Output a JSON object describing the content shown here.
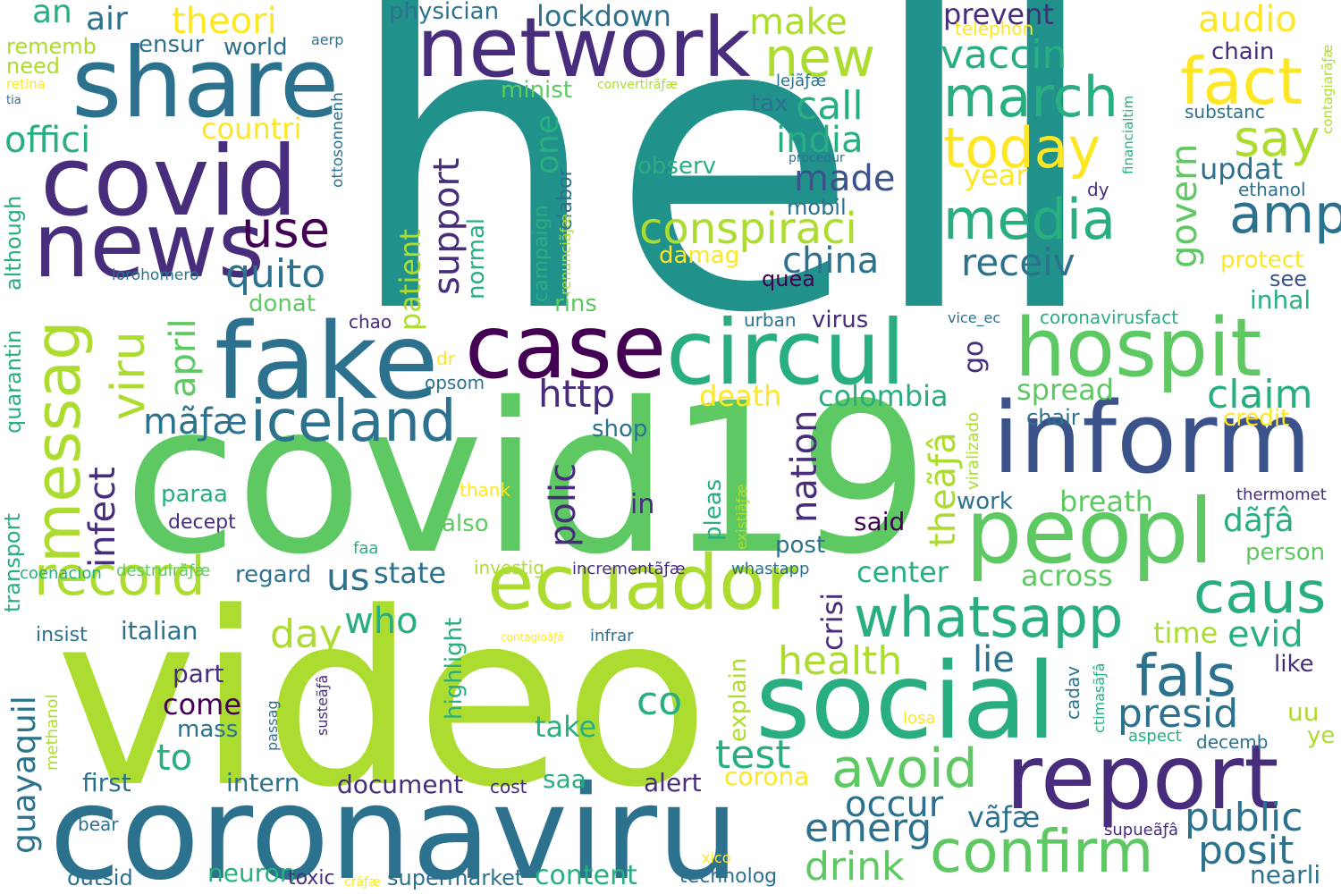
{
  "palette": {
    "d": "#440154",
    "p": "#472d7b",
    "i": "#3b528b",
    "b": "#2c728e",
    "t": "#21918c",
    "s": "#28ae80",
    "g": "#5ec962",
    "l": "#addc30",
    "y": "#fde725"
  },
  "words": [
    {
      "text": "hell",
      "c": "t"
    },
    {
      "text": "covid19",
      "c": "g"
    },
    {
      "text": "video",
      "c": "l"
    },
    {
      "text": "coronaviru",
      "c": "b"
    },
    {
      "text": "network",
      "c": "p"
    },
    {
      "text": "share",
      "c": "b"
    },
    {
      "text": "covid",
      "c": "p"
    },
    {
      "text": "news",
      "c": "p"
    },
    {
      "text": "fake",
      "c": "b"
    },
    {
      "text": "case",
      "c": "d"
    },
    {
      "text": "circul",
      "c": "s"
    },
    {
      "text": "hospit",
      "c": "g"
    },
    {
      "text": "inform",
      "c": "i"
    },
    {
      "text": "peopl",
      "c": "g"
    },
    {
      "text": "report",
      "c": "p"
    },
    {
      "text": "social",
      "c": "s"
    },
    {
      "text": "ecuador",
      "c": "l"
    },
    {
      "text": "whatsapp",
      "c": "s"
    },
    {
      "text": "iceland",
      "c": "b"
    },
    {
      "text": "messag",
      "c": "l"
    },
    {
      "text": "record",
      "c": "l"
    },
    {
      "text": "viru",
      "c": "l"
    },
    {
      "text": "march",
      "c": "s"
    },
    {
      "text": "fact",
      "c": "y"
    },
    {
      "text": "today",
      "c": "y"
    },
    {
      "text": "media",
      "c": "s"
    },
    {
      "text": "amp",
      "c": "b"
    },
    {
      "text": "say",
      "c": "l"
    },
    {
      "text": "new",
      "c": "l"
    },
    {
      "text": "conspiraci",
      "c": "l"
    },
    {
      "text": "confirm",
      "c": "g"
    },
    {
      "text": "avoid",
      "c": "g"
    },
    {
      "text": "fals",
      "c": "b"
    },
    {
      "text": "caus",
      "c": "s"
    },
    {
      "text": "claim",
      "c": "s"
    },
    {
      "text": "presid",
      "c": "b"
    },
    {
      "text": "public",
      "c": "b"
    },
    {
      "text": "posit",
      "c": "b"
    },
    {
      "text": "drink",
      "c": "g"
    },
    {
      "text": "emerg",
      "c": "b"
    },
    {
      "text": "test",
      "c": "s"
    },
    {
      "text": "health",
      "c": "l"
    },
    {
      "text": "use",
      "c": "d"
    },
    {
      "text": "quito",
      "c": "b"
    },
    {
      "text": "support",
      "c": "p"
    },
    {
      "text": "one",
      "c": "s"
    },
    {
      "text": "http",
      "c": "p"
    },
    {
      "text": "polic",
      "c": "p"
    },
    {
      "text": "nation",
      "c": "p"
    },
    {
      "text": "china",
      "c": "b"
    },
    {
      "text": "india",
      "c": "s"
    },
    {
      "text": "made",
      "c": "i"
    },
    {
      "text": "call",
      "c": "s"
    },
    {
      "text": "make",
      "c": "l"
    },
    {
      "text": "vaccin",
      "c": "s"
    },
    {
      "text": "receiv",
      "c": "b"
    },
    {
      "text": "govern",
      "c": "g"
    },
    {
      "text": "prevent",
      "c": "p"
    },
    {
      "text": "audio",
      "c": "y"
    },
    {
      "text": "updat",
      "c": "b"
    },
    {
      "text": "year",
      "c": "y"
    },
    {
      "text": "chain",
      "c": "p"
    },
    {
      "text": "substanc",
      "c": "b"
    },
    {
      "text": "ethanol",
      "c": "b"
    },
    {
      "text": "protect",
      "c": "y"
    },
    {
      "text": "see",
      "c": "i"
    },
    {
      "text": "inhal",
      "c": "s"
    },
    {
      "text": "tax",
      "c": "b"
    },
    {
      "text": "mobil",
      "c": "b"
    },
    {
      "text": "damag",
      "c": "y"
    },
    {
      "text": "observ",
      "c": "s"
    },
    {
      "text": "lockdown",
      "c": "b"
    },
    {
      "text": "physician",
      "c": "b"
    },
    {
      "text": "theori",
      "c": "y"
    },
    {
      "text": "air",
      "c": "b"
    },
    {
      "text": "an",
      "c": "s"
    },
    {
      "text": "world",
      "c": "b"
    },
    {
      "text": "ensur",
      "c": "b"
    },
    {
      "text": "rememb",
      "c": "l"
    },
    {
      "text": "need",
      "c": "l"
    },
    {
      "text": "retina",
      "c": "y"
    },
    {
      "text": "tia",
      "c": "b"
    },
    {
      "text": "offici",
      "c": "s"
    },
    {
      "text": "countri",
      "c": "y"
    },
    {
      "text": "minist",
      "c": "g"
    },
    {
      "text": "although",
      "c": "s"
    },
    {
      "text": "quarantin",
      "c": "s"
    },
    {
      "text": "transport",
      "c": "s"
    },
    {
      "text": "infect",
      "c": "p"
    },
    {
      "text": "april",
      "c": "g"
    },
    {
      "text": "mãƒæ",
      "c": "b"
    },
    {
      "text": "patient",
      "c": "l"
    },
    {
      "text": "normal",
      "c": "s"
    },
    {
      "text": "campaign",
      "c": "s"
    },
    {
      "text": "elabor",
      "c": "b"
    },
    {
      "text": "renunciãƒæ",
      "c": "l"
    },
    {
      "text": "ottosonnenh",
      "c": "b"
    },
    {
      "text": "lorohomero",
      "c": "b"
    },
    {
      "text": "donat",
      "c": "g"
    },
    {
      "text": "rins",
      "c": "g"
    },
    {
      "text": "chao",
      "c": "p"
    },
    {
      "text": "urban",
      "c": "b"
    },
    {
      "text": "virus",
      "c": "p"
    },
    {
      "text": "quea",
      "c": "d"
    },
    {
      "text": "vice_ec",
      "c": "b"
    },
    {
      "text": "coronavirusfact",
      "c": "s"
    },
    {
      "text": "dr",
      "c": "y"
    },
    {
      "text": "opsom",
      "c": "b"
    },
    {
      "text": "death",
      "c": "y"
    },
    {
      "text": "colombia",
      "c": "s"
    },
    {
      "text": "go",
      "c": "p"
    },
    {
      "text": "theãƒâ",
      "c": "l"
    },
    {
      "text": "viralizado",
      "c": "l"
    },
    {
      "text": "spread",
      "c": "g"
    },
    {
      "text": "chair",
      "c": "b"
    },
    {
      "text": "credit",
      "c": "y"
    },
    {
      "text": "dãƒâ",
      "c": "s"
    },
    {
      "text": "shop",
      "c": "b"
    },
    {
      "text": "paraa",
      "c": "s"
    },
    {
      "text": "decept",
      "c": "p"
    },
    {
      "text": "thank",
      "c": "y"
    },
    {
      "text": "also",
      "c": "g"
    },
    {
      "text": "in",
      "c": "p"
    },
    {
      "text": "pleas",
      "c": "s"
    },
    {
      "text": "existiãƒæ",
      "c": "l"
    },
    {
      "text": "said",
      "c": "d"
    },
    {
      "text": "post",
      "c": "b"
    },
    {
      "text": "work",
      "c": "b"
    },
    {
      "text": "breath",
      "c": "g"
    },
    {
      "text": "thermomet",
      "c": "p"
    },
    {
      "text": "person",
      "c": "g"
    },
    {
      "text": "faa",
      "c": "s"
    },
    {
      "text": "investig",
      "c": "l"
    },
    {
      "text": "incrementãƒæ",
      "c": "p"
    },
    {
      "text": "whastapp",
      "c": "b"
    },
    {
      "text": "center",
      "c": "s"
    },
    {
      "text": "across",
      "c": "g"
    },
    {
      "text": "time",
      "c": "l"
    },
    {
      "text": "evid",
      "c": "s"
    },
    {
      "text": "like",
      "c": "p"
    },
    {
      "text": "coenacion",
      "c": "s"
    },
    {
      "text": "destruirãƒæ",
      "c": "g"
    },
    {
      "text": "regard",
      "c": "b"
    },
    {
      "text": "us",
      "c": "b"
    },
    {
      "text": "state",
      "c": "b"
    },
    {
      "text": "who",
      "c": "s"
    },
    {
      "text": "day",
      "c": "l"
    },
    {
      "text": "highlight",
      "c": "s"
    },
    {
      "text": "insist",
      "c": "b"
    },
    {
      "text": "italian",
      "c": "b"
    },
    {
      "text": "contagioãƒâ",
      "c": "y"
    },
    {
      "text": "infrar",
      "c": "b"
    },
    {
      "text": "crisi",
      "c": "p"
    },
    {
      "text": "lie",
      "c": "b"
    },
    {
      "text": "guayaquil",
      "c": "b"
    },
    {
      "text": "part",
      "c": "p"
    },
    {
      "text": "come",
      "c": "d"
    },
    {
      "text": "mass",
      "c": "b"
    },
    {
      "text": "methanol",
      "c": "l"
    },
    {
      "text": "passag",
      "c": "b"
    },
    {
      "text": "susteãƒâ",
      "c": "p"
    },
    {
      "text": "co",
      "c": "s"
    },
    {
      "text": "explain",
      "c": "l"
    },
    {
      "text": "take",
      "c": "s"
    },
    {
      "text": "cadav",
      "c": "b"
    },
    {
      "text": "ctimasãƒâ",
      "c": "s"
    },
    {
      "text": "losa",
      "c": "y"
    },
    {
      "text": "uu",
      "c": "l"
    },
    {
      "text": "ye",
      "c": "l"
    },
    {
      "text": "aspect",
      "c": "s"
    },
    {
      "text": "decemb",
      "c": "b"
    },
    {
      "text": "to",
      "c": "s"
    },
    {
      "text": "first",
      "c": "b"
    },
    {
      "text": "intern",
      "c": "b"
    },
    {
      "text": "document",
      "c": "p"
    },
    {
      "text": "cost",
      "c": "p"
    },
    {
      "text": "saa",
      "c": "s"
    },
    {
      "text": "alert",
      "c": "p"
    },
    {
      "text": "corona",
      "c": "y"
    },
    {
      "text": "occur",
      "c": "b"
    },
    {
      "text": "vãƒæ",
      "c": "b"
    },
    {
      "text": "nearli",
      "c": "b"
    },
    {
      "text": "bear",
      "c": "b"
    },
    {
      "text": "outsid",
      "c": "b"
    },
    {
      "text": "neuron",
      "c": "s"
    },
    {
      "text": "toxic",
      "c": "p"
    },
    {
      "text": "crãƒæ",
      "c": "y"
    },
    {
      "text": "supermarket",
      "c": "b"
    },
    {
      "text": "content",
      "c": "s"
    },
    {
      "text": "technolog",
      "c": "b"
    },
    {
      "text": "xico",
      "c": "y"
    },
    {
      "text": "supueãƒâ",
      "c": "p"
    },
    {
      "text": "telephon",
      "c": "y"
    },
    {
      "text": "lejãƒæ",
      "c": "b"
    },
    {
      "text": "convertirãƒæ",
      "c": "l"
    },
    {
      "text": "procedur",
      "c": "b"
    },
    {
      "text": "financialtim",
      "c": "s"
    },
    {
      "text": "contagiarãƒæ",
      "c": "l"
    },
    {
      "text": "dy",
      "c": "p"
    },
    {
      "text": "aerp",
      "c": "b"
    }
  ]
}
